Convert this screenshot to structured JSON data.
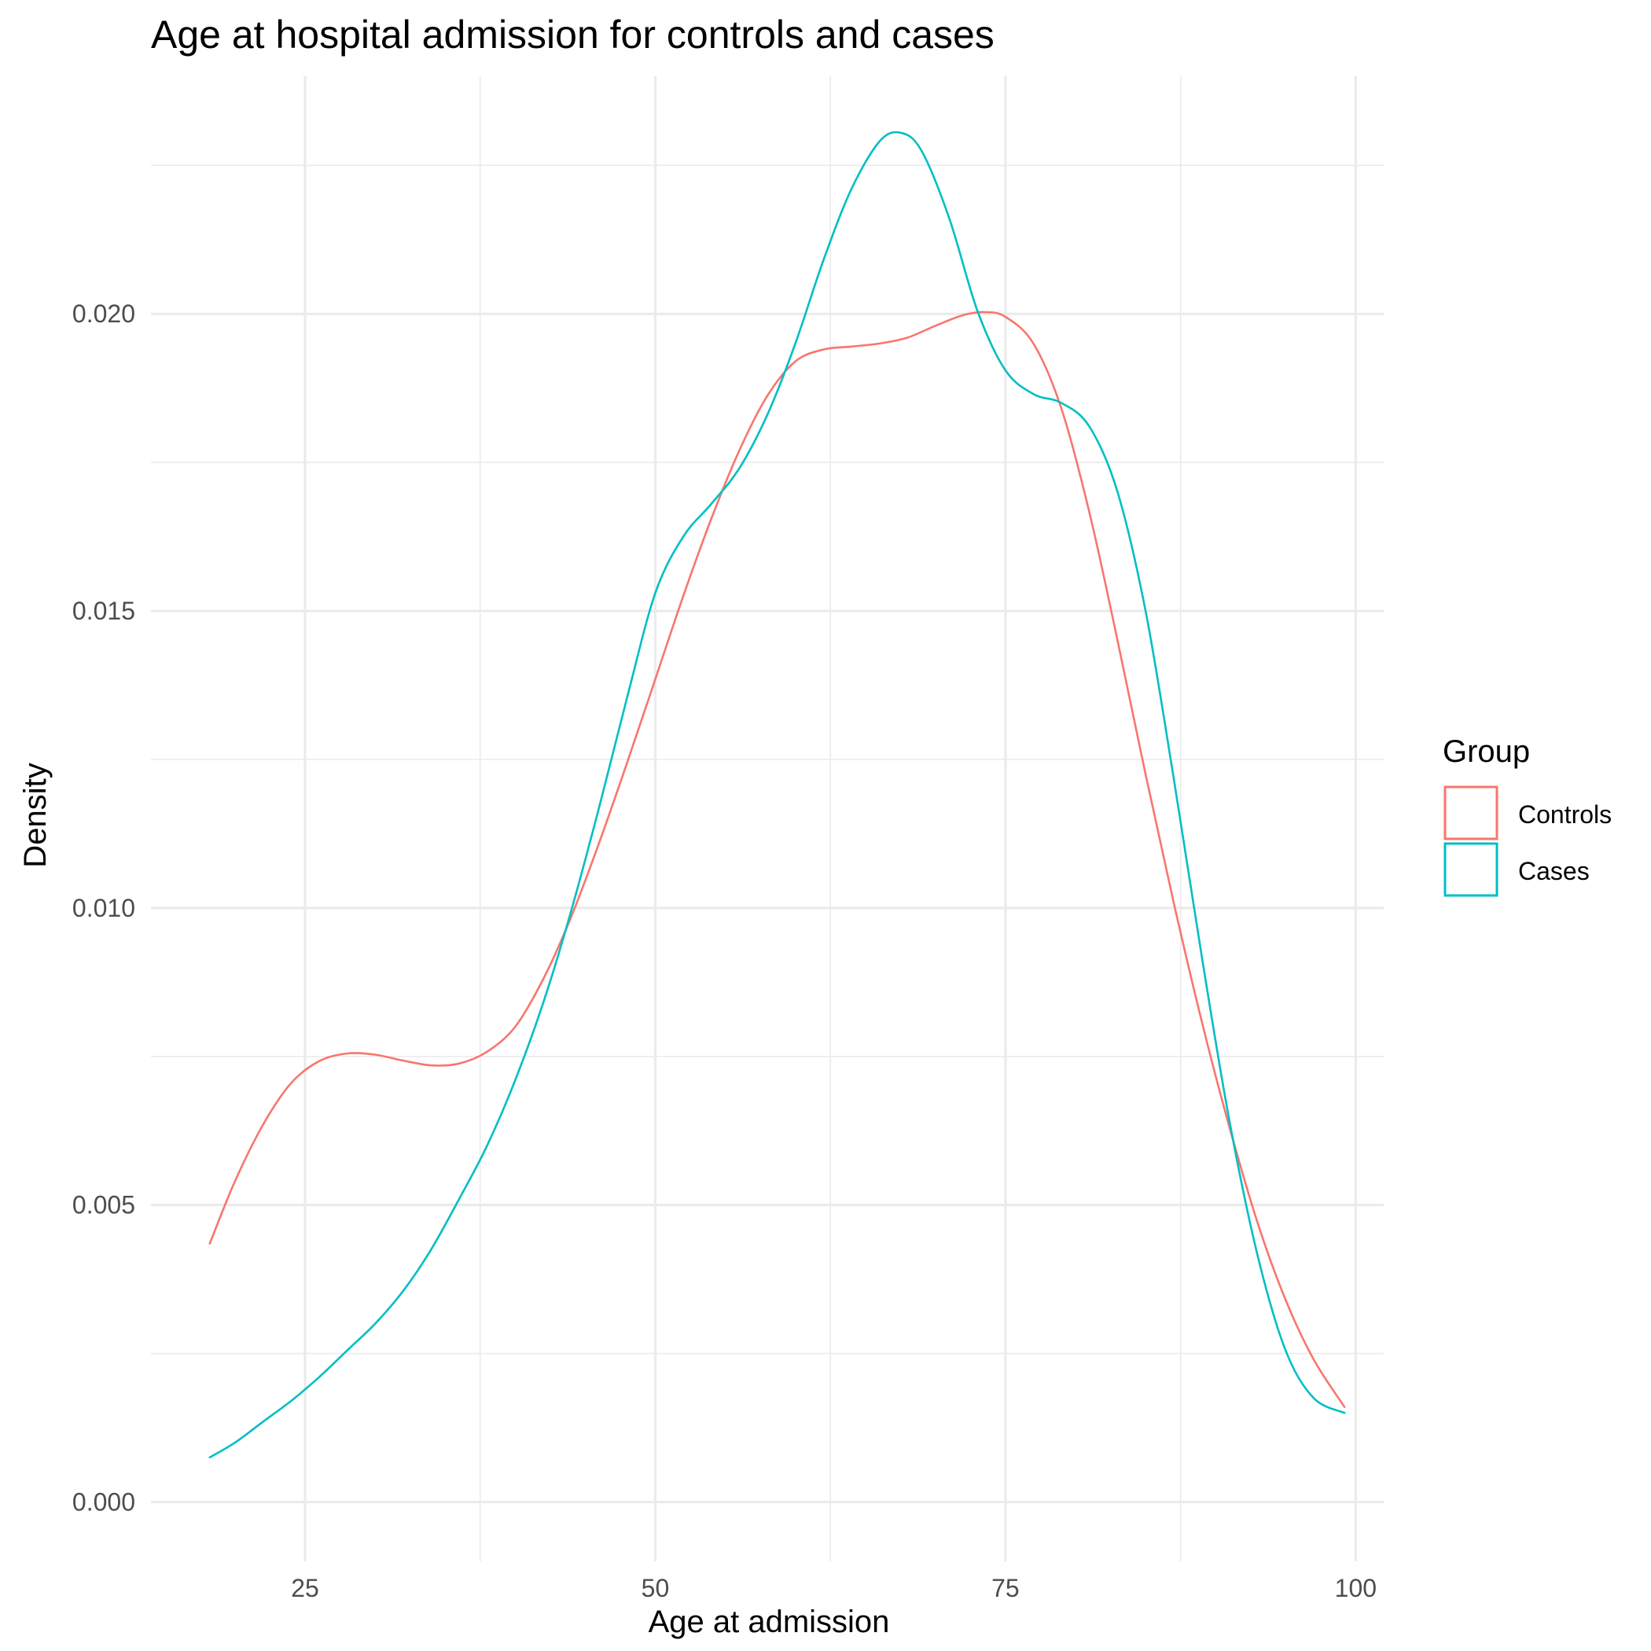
{
  "chart_data": {
    "type": "line",
    "title": "Age at hospital admission for controls and cases",
    "xlabel": "Age at admission",
    "ylabel": "Density",
    "xlim": [
      14,
      102
    ],
    "ylim": [
      -0.001,
      0.024
    ],
    "x_ticks": [
      25,
      50,
      75,
      100
    ],
    "y_ticks": [
      0.0,
      0.005,
      0.01,
      0.015,
      0.02
    ],
    "x_tick_labels": [
      "25",
      "50",
      "75",
      "100"
    ],
    "y_tick_labels": [
      "0.000",
      "0.005",
      "0.010",
      "0.015",
      "0.020"
    ],
    "grid": true,
    "legend": {
      "title": "Group",
      "position": "right",
      "entries": [
        "Controls",
        "Cases"
      ]
    },
    "series": [
      {
        "name": "Controls",
        "color": "#F8766D",
        "x": [
          18.2,
          20,
          22,
          24,
          26,
          28,
          30,
          32,
          34,
          36,
          38,
          40,
          42,
          44,
          46,
          48,
          50,
          52,
          54,
          56,
          58,
          60,
          62,
          64,
          66,
          68,
          70,
          72,
          73.5,
          75,
          77,
          79,
          81,
          83,
          85,
          87,
          89,
          91,
          93,
          95,
          97,
          99.2
        ],
        "y": [
          0.00435,
          0.0054,
          0.00635,
          0.00705,
          0.00742,
          0.00755,
          0.00753,
          0.00743,
          0.00735,
          0.00738,
          0.00758,
          0.008,
          0.0088,
          0.00985,
          0.0111,
          0.01245,
          0.01385,
          0.01525,
          0.01655,
          0.0177,
          0.01862,
          0.0192,
          0.0194,
          0.01945,
          0.0195,
          0.0196,
          0.0198,
          0.01998,
          0.02003,
          0.01995,
          0.0195,
          0.0184,
          0.01665,
          0.0145,
          0.01225,
          0.0101,
          0.0081,
          0.0063,
          0.0047,
          0.0034,
          0.0024,
          0.0016
        ]
      },
      {
        "name": "Cases",
        "color": "#00BFC4",
        "x": [
          18.2,
          20,
          22,
          24,
          26,
          28,
          30,
          32,
          34,
          36,
          38,
          40,
          42,
          44,
          46,
          48,
          50,
          52,
          54,
          56,
          58,
          60,
          62,
          64,
          66,
          67.5,
          69,
          71,
          73,
          75,
          77,
          79,
          81,
          83,
          85,
          87,
          89,
          91,
          93,
          95,
          97,
          99.2
        ],
        "y": [
          0.00075,
          0.001,
          0.00135,
          0.0017,
          0.0021,
          0.00255,
          0.003,
          0.00355,
          0.00425,
          0.0051,
          0.006,
          0.0071,
          0.0084,
          0.00995,
          0.0117,
          0.01355,
          0.0153,
          0.01625,
          0.0168,
          0.0174,
          0.0183,
          0.0195,
          0.0209,
          0.0221,
          0.0229,
          0.02305,
          0.02275,
          0.0216,
          0.02005,
          0.01905,
          0.01865,
          0.0185,
          0.0181,
          0.017,
          0.015,
          0.0122,
          0.0092,
          0.0064,
          0.00415,
          0.00255,
          0.00175,
          0.0015
        ]
      }
    ]
  }
}
